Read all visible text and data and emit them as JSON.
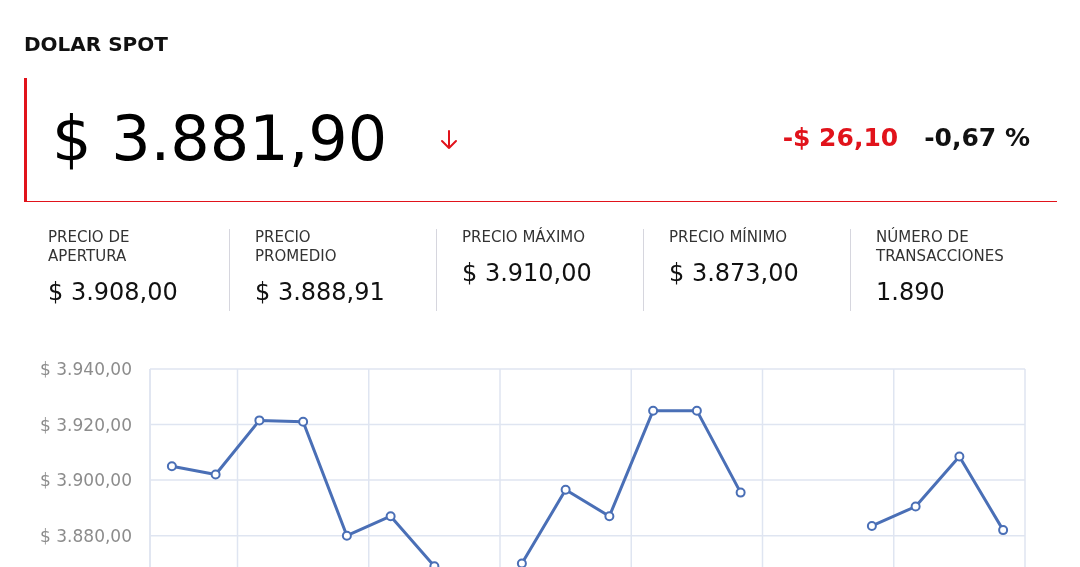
{
  "chart_data": {
    "type": "line",
    "title": "DOLAR SPOT",
    "annotations": [
      "$ 3.881,90",
      "-$ 26,10",
      "-0,67 %",
      "PRECIO DE APERTURA",
      "$ 3.908,00",
      "PRECIO PROMEDIO",
      "$ 3.888,91",
      "PRECIO MÁXIMO",
      "$ 3.910,00",
      "PRECIO MÍNIMO",
      "$ 3.873,00",
      "NÚMERO DE TRANSACCIONES",
      "1.890"
    ],
    "categories": [
      null,
      null,
      null,
      null,
      null,
      null,
      null,
      null,
      null,
      null,
      null,
      null,
      null,
      null,
      null,
      null,
      null,
      null,
      null,
      null
    ],
    "values": [
      3905,
      3902,
      3921.5,
      3921,
      3880,
      3887,
      3869,
      null,
      3870,
      3896.5,
      3887,
      3925,
      3925,
      3895.5,
      null,
      null,
      3883.5,
      3890.5,
      3908.5,
      3882
    ],
    "color": "#4a6fb6",
    "ylim": [
      3868,
      3940
    ],
    "yticks": [
      {
        "value": 3880,
        "label": "$ 3.880,00"
      },
      {
        "value": 3900,
        "label": "$ 3.900,00"
      },
      {
        "value": 3920,
        "label": "$ 3.920,00"
      },
      {
        "value": 3940,
        "label": "$ 3.940,00"
      }
    ],
    "grid": true,
    "tick_labels": "y",
    "marker": "circle",
    "line_style": "solid"
  }
}
